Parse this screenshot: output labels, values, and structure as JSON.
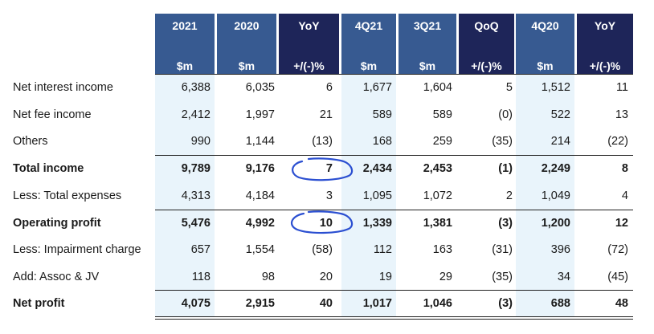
{
  "columns": [
    {
      "top": "2021",
      "bottom": "$m",
      "style": "blue"
    },
    {
      "top": "2020",
      "bottom": "$m",
      "style": "blue"
    },
    {
      "top": "YoY",
      "bottom": "+/(-)%",
      "style": "navy"
    },
    {
      "top": "4Q21",
      "bottom": "$m",
      "style": "blue"
    },
    {
      "top": "3Q21",
      "bottom": "$m",
      "style": "blue"
    },
    {
      "top": "QoQ",
      "bottom": "+/(-)%",
      "style": "navy"
    },
    {
      "top": "4Q20",
      "bottom": "$m",
      "style": "blue"
    },
    {
      "top": "YoY",
      "bottom": "+/(-)%",
      "style": "navy"
    }
  ],
  "rows": [
    {
      "label": "Net interest income",
      "bold": false,
      "values": [
        "6,388",
        "6,035",
        "6",
        "1,677",
        "1,604",
        "5",
        "1,512",
        "11"
      ]
    },
    {
      "label": "Net fee income",
      "bold": false,
      "values": [
        "2,412",
        "1,997",
        "21",
        "589",
        "589",
        "(0)",
        "522",
        "13"
      ]
    },
    {
      "label": "Others",
      "bold": false,
      "values": [
        "990",
        "1,144",
        "(13)",
        "168",
        "259",
        "(35)",
        "214",
        "(22)"
      ]
    },
    {
      "label": "Total income",
      "bold": true,
      "values": [
        "9,789",
        "9,176",
        "7",
        "2,434",
        "2,453",
        "(1)",
        "2,249",
        "8"
      ]
    },
    {
      "label": "Less: Total expenses",
      "bold": false,
      "values": [
        "4,313",
        "4,184",
        "3",
        "1,095",
        "1,072",
        "2",
        "1,049",
        "4"
      ]
    },
    {
      "label": "Operating profit",
      "bold": true,
      "values": [
        "5,476",
        "4,992",
        "10",
        "1,339",
        "1,381",
        "(3)",
        "1,200",
        "12"
      ]
    },
    {
      "label": "Less: Impairment charge",
      "bold": false,
      "values": [
        "657",
        "1,554",
        "(58)",
        "112",
        "163",
        "(31)",
        "396",
        "(72)"
      ]
    },
    {
      "label": "Add: Assoc & JV",
      "bold": false,
      "values": [
        "118",
        "98",
        "20",
        "19",
        "29",
        "(35)",
        "34",
        "(45)"
      ]
    },
    {
      "label": "Net profit",
      "bold": true,
      "values": [
        "4,075",
        "2,915",
        "40",
        "1,017",
        "1,046",
        "(3)",
        "688",
        "48"
      ]
    }
  ],
  "colors": {
    "header_blue": "#375a91",
    "header_navy": "#1e2559",
    "shade": "#e9f4fb",
    "annotation": "#2b4fd1"
  }
}
